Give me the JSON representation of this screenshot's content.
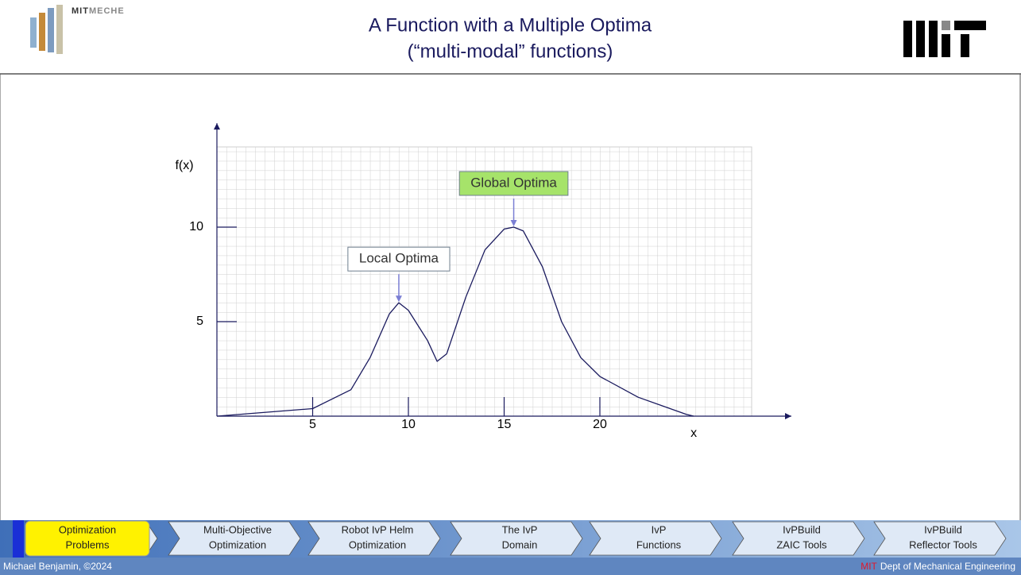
{
  "header": {
    "logo_parts": [
      "MIT",
      "MECHE"
    ],
    "title_lines": [
      "A Function with a Multiple Optima",
      "(“multi-modal” functions)"
    ]
  },
  "chart_data": {
    "type": "line",
    "x_label": "x",
    "y_label": "f(x)",
    "x": [
      0,
      5,
      7,
      8,
      9,
      9.5,
      10,
      11,
      11.5,
      12,
      13,
      14,
      15,
      15.5,
      16,
      17,
      18,
      19,
      20,
      22,
      24.5,
      24.9
    ],
    "series": [
      {
        "color": "#1a1a5e",
        "values": [
          0,
          0.4,
          1.4,
          3.1,
          5.4,
          6.0,
          5.6,
          4.0,
          2.9,
          3.3,
          6.3,
          8.8,
          9.9,
          10,
          9.8,
          7.9,
          5.0,
          3.1,
          2.1,
          1.0,
          0.1,
          0
        ]
      }
    ],
    "xlim": [
      0,
      30
    ],
    "ylim": [
      0,
      15.5
    ],
    "xticks": [
      5,
      10,
      15,
      20
    ],
    "yticks": [
      5,
      10
    ],
    "grid": true,
    "annotations": [
      {
        "text": "Local Optima",
        "x": 9.5,
        "y": 6.0,
        "color": "#ffffff"
      },
      {
        "text": "Global Optima",
        "x": 15.5,
        "y": 10,
        "color": "#a6e36a"
      }
    ]
  },
  "nav": {
    "items": [
      {
        "lines": [
          "Optimization",
          "Problems"
        ],
        "active": true
      },
      {
        "lines": [
          "Multi-Objective",
          "Optimization"
        ]
      },
      {
        "lines": [
          "Robot IvP Helm",
          "Optimization"
        ]
      },
      {
        "lines": [
          "The IvP",
          "Domain"
        ]
      },
      {
        "lines": [
          "IvP",
          "Functions"
        ]
      },
      {
        "lines": [
          "IvPBuild",
          "ZAIC Tools"
        ]
      },
      {
        "lines": [
          "IvPBuild",
          "Reflector Tools"
        ]
      }
    ]
  },
  "footer": {
    "author": "Michael Benjamin, ©2024",
    "org_mark": "MIT",
    "org": "Dept of Mechanical Engineering"
  }
}
